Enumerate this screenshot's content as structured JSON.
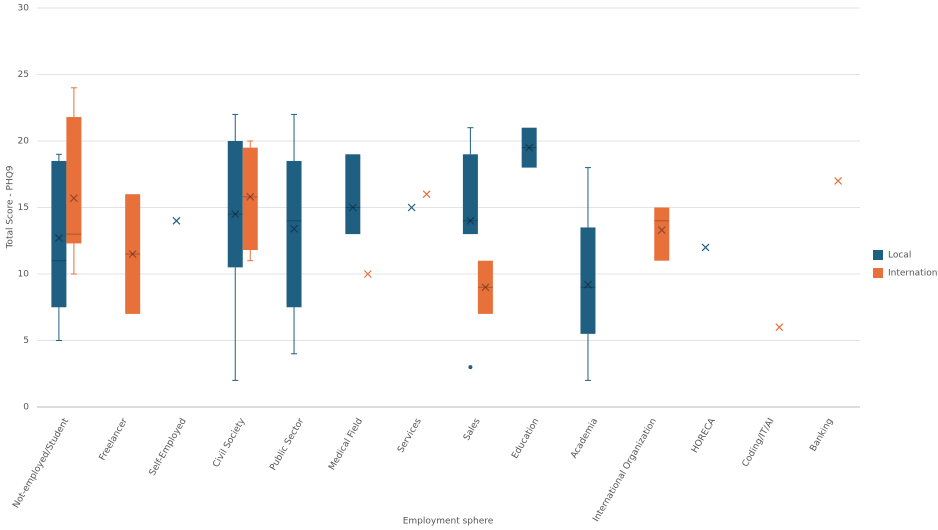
{
  "chart_data": {
    "type": "box",
    "x_label": "Employment sphere",
    "y_label": "Total Score - PHQ9",
    "categories": [
      "Not-employed/Student",
      "Freelancer",
      "Self-Employed",
      "Civil Society",
      "Public Sector",
      "Medical Field",
      "Services",
      "Sales",
      "Education",
      "Academia",
      "International Organization",
      "HORECA",
      "Coding/IT/AI",
      "Banking"
    ],
    "ylim": [
      0,
      30
    ],
    "yticks": [
      0,
      5,
      10,
      15,
      20,
      25,
      30
    ],
    "grid": true,
    "legend": "right",
    "series": [
      {
        "name": "Local",
        "color": "#1f5f82",
        "min": [
          5,
          null,
          null,
          2,
          4,
          13,
          null,
          13,
          18,
          2,
          null,
          null,
          null,
          null
        ],
        "q1": [
          7.5,
          null,
          null,
          10.5,
          7.5,
          13,
          null,
          13,
          18,
          5.5,
          null,
          null,
          null,
          null
        ],
        "median": [
          11,
          null,
          null,
          14.5,
          14,
          15,
          null,
          14,
          19.5,
          9,
          null,
          null,
          null,
          null
        ],
        "q3": [
          18.5,
          null,
          null,
          20,
          18.5,
          19,
          null,
          19,
          21,
          13.5,
          null,
          null,
          null,
          null
        ],
        "max": [
          19,
          null,
          null,
          22,
          22,
          19,
          null,
          21,
          21,
          18,
          null,
          null,
          null,
          null
        ],
        "mean": [
          12.7,
          null,
          14,
          14.5,
          13.4,
          15,
          15,
          14,
          19.5,
          9.2,
          null,
          12,
          null,
          null
        ],
        "outliers": [
          [],
          [],
          [],
          [],
          [],
          [],
          [],
          [
            3
          ],
          [],
          [],
          [],
          [],
          [],
          []
        ]
      },
      {
        "name": "International",
        "color": "#e8703a",
        "min": [
          10,
          7,
          null,
          11,
          null,
          null,
          null,
          7,
          null,
          null,
          11,
          null,
          null,
          null
        ],
        "q1": [
          12.3,
          7,
          null,
          11.8,
          null,
          null,
          null,
          7,
          null,
          null,
          11,
          null,
          null,
          null
        ],
        "median": [
          13,
          11.5,
          null,
          15.8,
          null,
          null,
          null,
          9,
          null,
          null,
          14,
          null,
          null,
          null
        ],
        "q3": [
          21.8,
          16,
          null,
          19.5,
          null,
          null,
          null,
          11,
          null,
          null,
          15,
          null,
          null,
          null
        ],
        "max": [
          24,
          16,
          null,
          20,
          null,
          null,
          null,
          11,
          null,
          null,
          15,
          null,
          null,
          null
        ],
        "mean": [
          15.7,
          11.5,
          null,
          15.8,
          null,
          10,
          16,
          9,
          null,
          null,
          13.3,
          null,
          6,
          17
        ],
        "outliers": [
          [],
          [],
          [],
          [],
          [],
          [],
          [],
          [],
          [],
          [],
          [],
          [],
          [],
          []
        ]
      }
    ]
  }
}
